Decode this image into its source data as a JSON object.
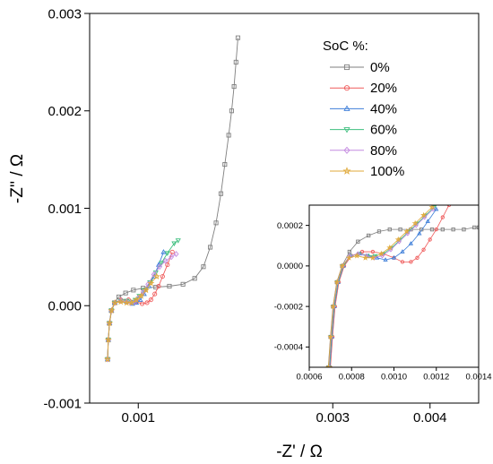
{
  "chart_data": [
    {
      "id": "main",
      "type": "line",
      "xlabel": "-Z' / Ω",
      "ylabel": "-Z'' / Ω",
      "xlim": [
        0.0005,
        0.0045
      ],
      "ylim": [
        -0.001,
        0.003
      ],
      "xticks": [
        0.001,
        0.003,
        0.004
      ],
      "xtick_labels": [
        "0.001",
        "0.003",
        "0.004"
      ],
      "yticks": [
        -0.001,
        0,
        0.001,
        0.002,
        0.003
      ],
      "ytick_labels": [
        "-0.001",
        "0.000",
        "0.001",
        "0.002",
        "0.003"
      ],
      "legend": {
        "title": "SoC %:",
        "position": "top-right"
      },
      "series": [
        {
          "name": "0%",
          "color": "#7f7f7f",
          "marker": "square",
          "x": [
            0.000686,
            0.000692,
            0.000702,
            0.000722,
            0.000755,
            0.0008,
            0.00087,
            0.00095,
            0.00105,
            0.00118,
            0.00132,
            0.00146,
            0.00158,
            0.00167,
            0.00174,
            0.0018,
            0.00185,
            0.00189,
            0.00193,
            0.00196,
            0.001985,
            0.002005,
            0.002025
          ],
          "y": [
            -0.00055,
            -0.00035,
            -0.00018,
            -5e-05,
            3e-05,
            9e-05,
            0.00013,
            0.00016,
            0.00018,
            0.00019,
            0.0002,
            0.00022,
            0.00028,
            0.0004,
            0.0006,
            0.00085,
            0.00115,
            0.00145,
            0.00175,
            0.002,
            0.00225,
            0.0025,
            0.00275
          ]
        },
        {
          "name": "20%",
          "color": "#ef5a5a",
          "marker": "circle",
          "x": [
            0.000684,
            0.000692,
            0.000705,
            0.000725,
            0.00076,
            0.00082,
            0.0009,
            0.00098,
            0.00104,
            0.00109,
            0.00113,
            0.00117,
            0.00121,
            0.00125,
            0.0013,
            0.00135
          ],
          "y": [
            -0.00055,
            -0.00035,
            -0.00018,
            -5e-05,
            3e-05,
            6e-05,
            6e-05,
            4e-05,
            2e-05,
            3e-05,
            6e-05,
            0.00012,
            0.0002,
            0.0003,
            0.00042,
            0.00055
          ]
        },
        {
          "name": "40%",
          "color": "#3f7fd9",
          "marker": "triangle-up",
          "x": [
            0.000684,
            0.000692,
            0.000705,
            0.000725,
            0.00076,
            0.00082,
            0.00088,
            0.00094,
            0.00098,
            0.00102,
            0.00106,
            0.00111,
            0.00116,
            0.00121,
            0.00126
          ],
          "y": [
            -0.00055,
            -0.00035,
            -0.00018,
            -5e-05,
            3e-05,
            5e-05,
            4e-05,
            2e-05,
            3e-05,
            6e-05,
            0.00012,
            0.0002,
            0.0003,
            0.00042,
            0.00055
          ]
        },
        {
          "name": "60%",
          "color": "#3fbf7f",
          "marker": "triangle-down",
          "x": [
            0.000684,
            0.000692,
            0.000705,
            0.000725,
            0.00076,
            0.00082,
            0.00088,
            0.00093,
            0.00097,
            0.00101,
            0.00106,
            0.00112,
            0.00118,
            0.00124,
            0.0013,
            0.00137,
            0.00141
          ],
          "y": [
            -0.00055,
            -0.00035,
            -0.00018,
            -5e-05,
            3e-05,
            5e-05,
            5e-05,
            4e-05,
            6e-05,
            0.0001,
            0.00016,
            0.00024,
            0.00034,
            0.00044,
            0.00054,
            0.00064,
            0.00067
          ]
        },
        {
          "name": "80%",
          "color": "#c48ae0",
          "marker": "diamond",
          "x": [
            0.000684,
            0.000692,
            0.000705,
            0.000725,
            0.00076,
            0.00082,
            0.00088,
            0.00092,
            0.00096,
            0.001,
            0.00105,
            0.0011,
            0.00116,
            0.00122,
            0.00128,
            0.00134,
            0.00139
          ],
          "y": [
            -0.00055,
            -0.00035,
            -0.00018,
            -5e-05,
            3e-05,
            5e-05,
            4e-05,
            3e-05,
            4e-05,
            8e-05,
            0.00014,
            0.00022,
            0.00032,
            0.0004,
            0.00046,
            0.0005,
            0.00053
          ]
        },
        {
          "name": "100%",
          "color": "#e0a93a",
          "marker": "star",
          "x": [
            0.000684,
            0.000692,
            0.000705,
            0.000725,
            0.00076,
            0.00082,
            0.00088,
            0.00093,
            0.00098,
            0.00103,
            0.00108,
            0.00113,
            0.00119
          ],
          "y": [
            -0.00055,
            -0.00035,
            -0.00018,
            -5e-05,
            3e-05,
            4e-05,
            3e-05,
            3e-05,
            6e-05,
            0.0001,
            0.00016,
            0.00023,
            0.0003
          ]
        }
      ]
    },
    {
      "id": "inset",
      "type": "line",
      "xlabel": "",
      "ylabel": "",
      "xlim": [
        0.0006,
        0.0014
      ],
      "ylim": [
        -0.0005,
        0.0003
      ],
      "xticks": [
        0.0006,
        0.0008,
        0.001,
        0.0012,
        0.0014
      ],
      "xtick_labels": [
        "0.0006",
        "0.0008",
        "0.0010",
        "0.0012",
        "0.0014"
      ],
      "yticks": [
        -0.0004,
        -0.0002,
        0,
        0.0002
      ],
      "ytick_labels": [
        "-0.0004",
        "-0.0002",
        "0.0000",
        "0.0002"
      ],
      "series": [
        {
          "name": "0%",
          "color": "#7f7f7f",
          "marker": "square",
          "x": [
            0.00069,
            0.0007,
            0.000712,
            0.00073,
            0.000755,
            0.00079,
            0.00083,
            0.00088,
            0.00093,
            0.00098,
            0.00103,
            0.00108,
            0.00113,
            0.00118,
            0.00123,
            0.00128,
            0.00133,
            0.00138,
            0.0014
          ],
          "y": [
            -0.0005,
            -0.00035,
            -0.0002,
            -8e-05,
            0.0,
            7e-05,
            0.00012,
            0.00015,
            0.00017,
            0.00018,
            0.00018,
            0.00018,
            0.00018,
            0.00018,
            0.00018,
            0.00018,
            0.00018,
            0.00019,
            0.00019
          ]
        },
        {
          "name": "20%",
          "color": "#ef5a5a",
          "marker": "circle",
          "x": [
            0.0007,
            0.00071,
            0.000722,
            0.00074,
            0.000765,
            0.0008,
            0.00085,
            0.0009,
            0.00095,
            0.001,
            0.00104,
            0.00108,
            0.00111,
            0.00114,
            0.00117,
            0.0012,
            0.00123,
            0.00126
          ],
          "y": [
            -0.0005,
            -0.00035,
            -0.0002,
            -8e-05,
            0.0,
            5e-05,
            7e-05,
            7e-05,
            6e-05,
            4e-05,
            2e-05,
            2e-05,
            4e-05,
            8e-05,
            0.00013,
            0.00018,
            0.00024,
            0.0003
          ]
        },
        {
          "name": "40%",
          "color": "#3f7fd9",
          "marker": "triangle-up",
          "x": [
            0.000697,
            0.000707,
            0.000719,
            0.000737,
            0.000762,
            0.000795,
            0.00084,
            0.00088,
            0.00092,
            0.00096,
            0.001,
            0.00104,
            0.00108,
            0.00112,
            0.00116,
            0.0012
          ],
          "y": [
            -0.0005,
            -0.00035,
            -0.0002,
            -8e-05,
            0.0,
            5e-05,
            6e-05,
            5e-05,
            4e-05,
            3e-05,
            4e-05,
            7e-05,
            0.00011,
            0.00016,
            0.00022,
            0.00028
          ]
        },
        {
          "name": "60%",
          "color": "#3fbf7f",
          "marker": "triangle-down",
          "x": [
            0.000695,
            0.000705,
            0.000717,
            0.000735,
            0.00076,
            0.000793,
            0.000835,
            0.000875,
            0.00091,
            0.00095,
            0.00099,
            0.00103,
            0.00107,
            0.00111,
            0.00115,
            0.00119
          ],
          "y": [
            -0.0005,
            -0.00035,
            -0.0002,
            -8e-05,
            0.0,
            5e-05,
            6e-05,
            5e-05,
            5e-05,
            6e-05,
            9e-05,
            0.00013,
            0.00017,
            0.00021,
            0.00025,
            0.00029
          ]
        },
        {
          "name": "80%",
          "color": "#c48ae0",
          "marker": "diamond",
          "x": [
            0.000693,
            0.000703,
            0.000715,
            0.000733,
            0.000758,
            0.00079,
            0.00083,
            0.00087,
            0.000905,
            0.000945,
            0.000985,
            0.001025,
            0.001065,
            0.001105,
            0.001145,
            0.001185
          ],
          "y": [
            -0.0005,
            -0.00035,
            -0.0002,
            -8e-05,
            0.0,
            5e-05,
            6e-05,
            5e-05,
            4e-05,
            5e-05,
            8e-05,
            0.00012,
            0.00016,
            0.0002,
            0.00024,
            0.00028
          ]
        },
        {
          "name": "100%",
          "color": "#e0a93a",
          "marker": "star",
          "x": [
            0.000691,
            0.000701,
            0.000713,
            0.000731,
            0.000756,
            0.000788,
            0.000825,
            0.000865,
            0.0009,
            0.00094,
            0.00098,
            0.00102,
            0.00106,
            0.0011,
            0.00114,
            0.00118
          ],
          "y": [
            -0.0005,
            -0.00035,
            -0.0002,
            -8e-05,
            0.0,
            4e-05,
            5e-05,
            4e-05,
            4e-05,
            6e-05,
            9e-05,
            0.00013,
            0.00017,
            0.00021,
            0.00025,
            0.00029
          ]
        }
      ]
    }
  ]
}
